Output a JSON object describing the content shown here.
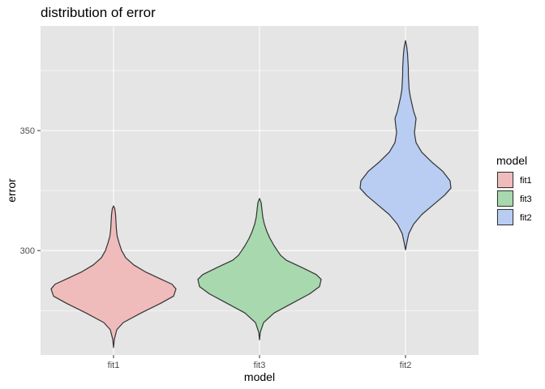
{
  "chart_data": {
    "type": "violin",
    "title": "distribution of error",
    "xlabel": "model",
    "ylabel": "error",
    "categories": [
      "fit1",
      "fit3",
      "fit2"
    ],
    "ylim": [
      256.5,
      393.6
    ],
    "yticks": [
      300,
      350
    ],
    "grid": true,
    "legend": {
      "title": "model",
      "position": "right",
      "entries": [
        "fit1",
        "fit3",
        "fit2"
      ]
    },
    "series": [
      {
        "name": "fit1",
        "color": "#F8766D",
        "fill": "#efbcbb",
        "profile": [
          [
            259.6,
            0
          ],
          [
            263,
            1
          ],
          [
            267,
            4
          ],
          [
            270,
            12
          ],
          [
            274,
            34
          ],
          [
            278,
            58
          ],
          [
            281,
            74
          ],
          [
            284,
            77
          ],
          [
            286,
            72
          ],
          [
            288,
            59
          ],
          [
            291,
            40
          ],
          [
            294,
            25
          ],
          [
            297,
            15
          ],
          [
            300,
            10
          ],
          [
            303,
            7
          ],
          [
            306,
            4.5
          ],
          [
            309,
            3.5
          ],
          [
            312,
            3
          ],
          [
            315,
            2.5
          ],
          [
            317.5,
            1.5
          ],
          [
            318.6,
            0
          ]
        ]
      },
      {
        "name": "fit3",
        "color": "#00BA38",
        "fill": "#a8d8ad",
        "profile": [
          [
            262.8,
            0
          ],
          [
            266,
            1
          ],
          [
            270,
            5
          ],
          [
            274,
            18
          ],
          [
            278,
            40
          ],
          [
            282,
            62
          ],
          [
            285,
            74
          ],
          [
            288,
            76
          ],
          [
            290,
            70
          ],
          [
            293,
            52
          ],
          [
            296,
            33
          ],
          [
            298,
            26
          ],
          [
            300,
            22
          ],
          [
            302,
            18
          ],
          [
            305,
            13
          ],
          [
            308,
            9
          ],
          [
            311,
            6
          ],
          [
            314,
            4
          ],
          [
            317,
            3
          ],
          [
            320,
            2
          ],
          [
            321.7,
            0
          ]
        ]
      },
      {
        "name": "fit2",
        "color": "#619CFF",
        "fill": "#b9cdf3",
        "profile": [
          [
            300.3,
            0
          ],
          [
            303,
            1.5
          ],
          [
            307,
            4
          ],
          [
            311,
            10
          ],
          [
            315,
            20
          ],
          [
            319,
            34
          ],
          [
            323,
            48
          ],
          [
            326,
            56
          ],
          [
            329,
            55
          ],
          [
            333,
            46
          ],
          [
            337,
            32
          ],
          [
            341,
            20
          ],
          [
            345,
            13
          ],
          [
            349,
            11
          ],
          [
            352,
            12
          ],
          [
            355,
            13
          ],
          [
            358,
            10
          ],
          [
            361,
            8
          ],
          [
            364,
            6
          ],
          [
            367,
            4.5
          ],
          [
            370,
            4
          ],
          [
            373,
            3.5
          ],
          [
            376,
            3.5
          ],
          [
            379,
            3
          ],
          [
            382,
            2.5
          ],
          [
            385,
            1.5
          ],
          [
            387.5,
            0
          ]
        ]
      }
    ]
  }
}
